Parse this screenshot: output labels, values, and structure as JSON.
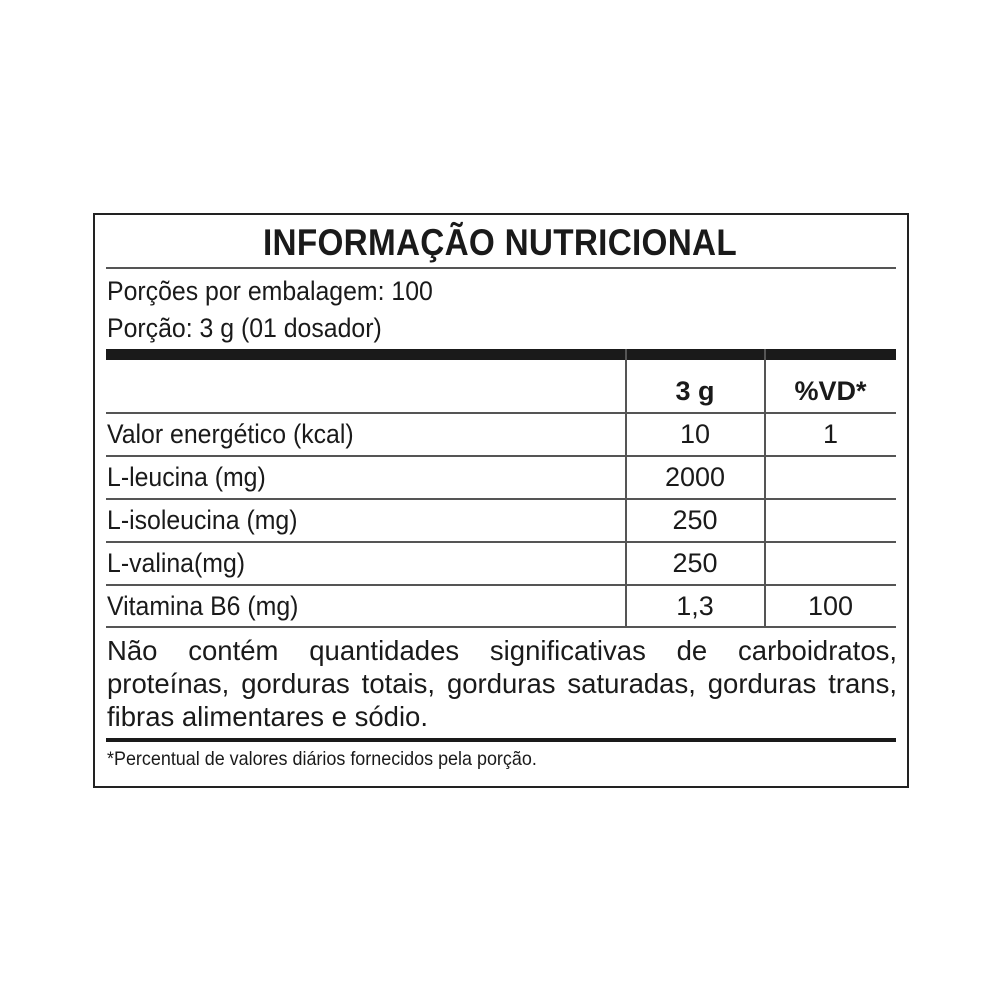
{
  "title": "INFORMAÇÃO NUTRICIONAL",
  "servings_per_package": "Porções por embalagem: 100",
  "serving_size": "Porção: 3 g (01 dosador)",
  "table": {
    "headers": [
      "",
      "3 g",
      "%VD*"
    ],
    "rows": [
      {
        "name": "Valor energético (kcal)",
        "amount": "10",
        "dv": "1"
      },
      {
        "name": "L-leucina (mg)",
        "amount": "2000",
        "dv": ""
      },
      {
        "name": "L-isoleucina (mg)",
        "amount": "250",
        "dv": ""
      },
      {
        "name": "L-valina(mg)",
        "amount": "250",
        "dv": ""
      },
      {
        "name": "Vitamina B6 (mg)",
        "amount": "1,3",
        "dv": "100"
      }
    ]
  },
  "note": "Não contém quantidades significativas de carboidratos, proteínas, gorduras totais, gorduras saturadas, gorduras trans, fibras alimentares e sódio.",
  "footnote": "*Percentual de valores diários fornecidos pela porção."
}
